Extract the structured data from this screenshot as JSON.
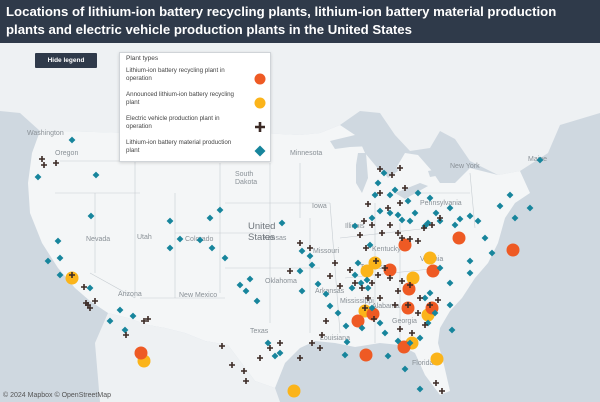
{
  "title": "Locations of lithium-ion battery recycling plants, lithium-ion battery material production plants and electric vehicle production plants in the United States",
  "hide_legend_label": "Hide legend",
  "legend": {
    "title": "Plant types",
    "items": [
      {
        "label": "Lithium-ion battery recycling plant in operation",
        "symbol": "circle",
        "color": "#ee5a24"
      },
      {
        "label": "Announced lithium-ion battery recycling plant",
        "symbol": "circle",
        "color": "#fbb41a"
      },
      {
        "label": "Electric vehicle production plant in operation",
        "symbol": "cross",
        "color": "#3b2a25"
      },
      {
        "label": "Lithium-ion battery material production plant",
        "symbol": "diamond",
        "color": "#17859c"
      }
    ]
  },
  "map_labels": {
    "country": "United States",
    "places": [
      "Washington",
      "Oregon",
      "Nevada",
      "Utah",
      "Colorado",
      "Arizona",
      "New Mexico",
      "Texas",
      "Minnesota",
      "South Dakota",
      "Iowa",
      "Missouri",
      "Kansas",
      "Oklahoma",
      "Arkansas",
      "Louisiana",
      "Mississippi",
      "Alabama",
      "Georgia",
      "Florida",
      "Tennessee",
      "Kentucky",
      "Illinois",
      "Virginia",
      "Pennsylvania",
      "New York",
      "Maine"
    ]
  },
  "credit": "© 2024 Mapbox © OpenStreetMap",
  "colors": {
    "header": "#2f3a4a",
    "land": "#f3f5f6",
    "water": "#cdd6de",
    "recycling": "#ee5a24",
    "announced": "#fbb41a",
    "ev": "#3b2a25",
    "material": "#17859c"
  }
}
